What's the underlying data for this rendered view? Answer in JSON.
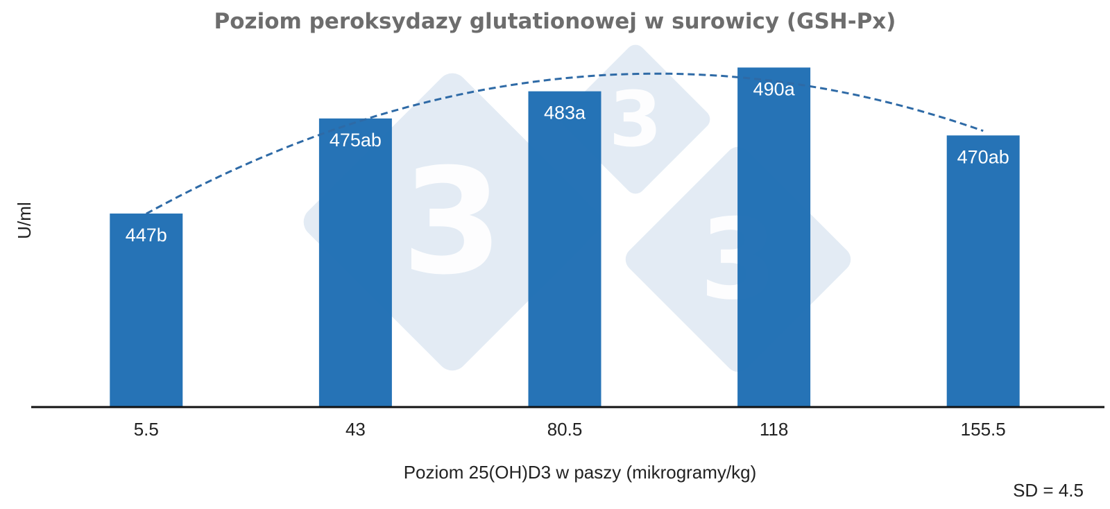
{
  "chart_data": {
    "type": "bar",
    "title": "Poziom peroksydazy glutationowej w surowicy (GSH-Px)",
    "xlabel": "Poziom 25(OH)D3 w paszy (mikrogramy/kg)",
    "ylabel": "U/ml",
    "categories": [
      "5.5",
      "43",
      "80.5",
      "118",
      "155.5"
    ],
    "values": [
      447,
      475,
      483,
      490,
      470
    ],
    "data_labels": [
      "447b",
      "475ab",
      "483a",
      "490a",
      "470ab"
    ],
    "ylim": [
      390,
      496
    ],
    "grid": false,
    "legend": "none",
    "trendline": "quadratic-dashed",
    "annotation": "SD = 4.5",
    "colors": {
      "bar": "#1f6eb4",
      "trendline": "#2e6aa6",
      "title": "#6d6d6d",
      "axis": "#111111",
      "watermark": "#dce6f1"
    }
  }
}
